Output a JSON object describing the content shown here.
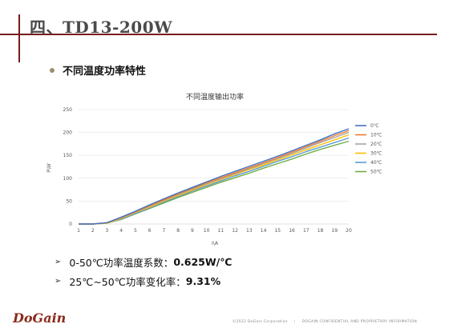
{
  "slide": {
    "title": "四、TD13-200W",
    "bullet": "不同温度功率特性",
    "stats": [
      {
        "label": "0-50℃功率温度系数：",
        "value": "0.625W/℃"
      },
      {
        "label": "25℃~50℃功率变化率：",
        "value": "9.31%"
      }
    ],
    "logo": "DoGain",
    "footer_left": "©2022 DoGain Corporation",
    "footer_right": "DOGAIN CONFIDENTIAL AND PROPRIETARY INFORMATION",
    "accent_color": "#7a1c1c"
  },
  "chart_data": {
    "type": "line",
    "title": "不同温度输出功率",
    "xlabel": "I\\A",
    "ylabel": "P\\W",
    "x": [
      1,
      2,
      3,
      4,
      5,
      6,
      7,
      8,
      9,
      10,
      11,
      12,
      13,
      14,
      15,
      16,
      17,
      18,
      19,
      20
    ],
    "xlim": [
      1,
      20
    ],
    "ylim": [
      0,
      250
    ],
    "yticks": [
      0,
      50,
      100,
      150,
      200,
      250
    ],
    "grid": true,
    "legend_position": "right",
    "series": [
      {
        "name": "0℃",
        "color": "#4472C4",
        "values": [
          0,
          0,
          3,
          15,
          28,
          42,
          55,
          68,
          80,
          92,
          104,
          115,
          126,
          137,
          148,
          160,
          172,
          184,
          197,
          208
        ]
      },
      {
        "name": "10℃",
        "color": "#ED7D31",
        "values": [
          0,
          0,
          3,
          14,
          27,
          40,
          53,
          66,
          78,
          90,
          101,
          112,
          123,
          134,
          145,
          157,
          169,
          181,
          193,
          204
        ]
      },
      {
        "name": "20℃",
        "color": "#A5A5A5",
        "values": [
          0,
          0,
          3,
          13,
          26,
          39,
          52,
          64,
          76,
          88,
          99,
          110,
          121,
          132,
          143,
          154,
          166,
          178,
          189,
          200
        ]
      },
      {
        "name": "30℃",
        "color": "#FFC000",
        "values": [
          0,
          0,
          2,
          12,
          25,
          37,
          50,
          62,
          74,
          86,
          97,
          108,
          119,
          129,
          140,
          151,
          162,
          173,
          184,
          195
        ]
      },
      {
        "name": "40℃",
        "color": "#5B9BD5",
        "values": [
          0,
          0,
          2,
          11,
          23,
          35,
          48,
          60,
          72,
          83,
          94,
          105,
          115,
          126,
          137,
          147,
          158,
          168,
          178,
          188
        ]
      },
      {
        "name": "50℃",
        "color": "#70AD47",
        "values": [
          0,
          0,
          2,
          10,
          22,
          34,
          46,
          58,
          69,
          80,
          91,
          101,
          111,
          122,
          132,
          142,
          153,
          163,
          172,
          181
        ]
      }
    ]
  }
}
